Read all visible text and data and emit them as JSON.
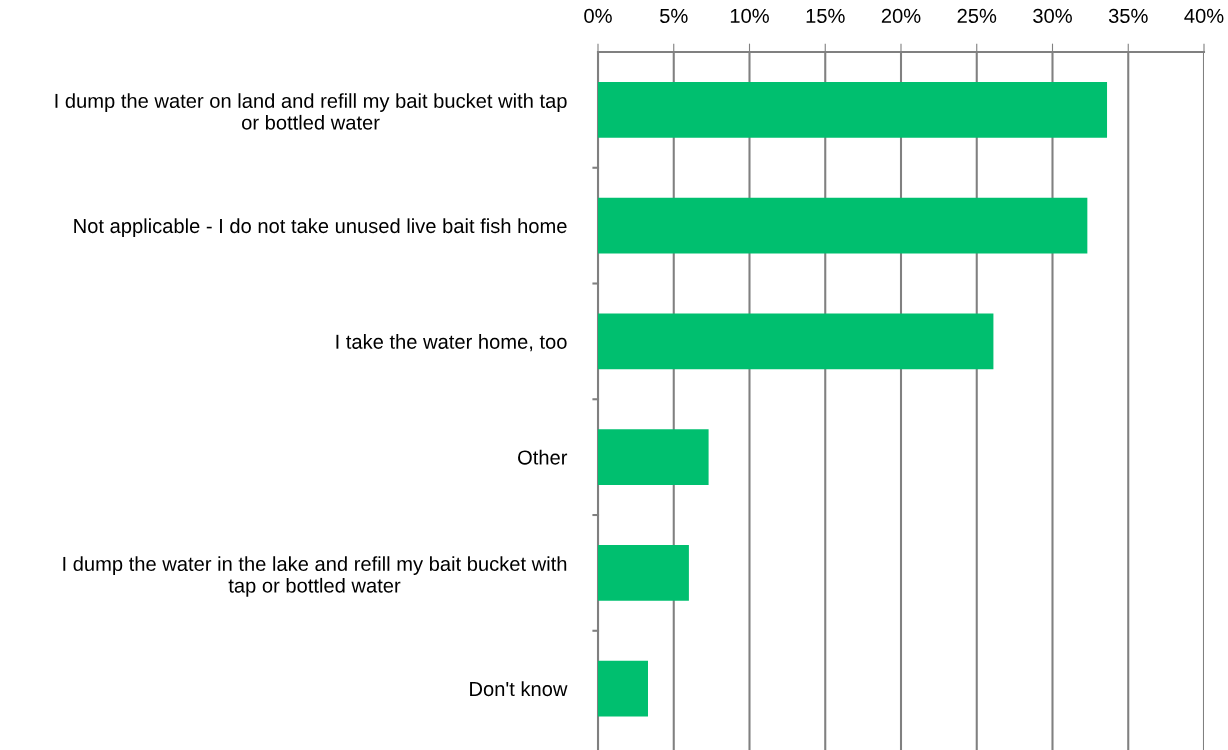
{
  "chart_data": {
    "type": "bar",
    "orientation": "horizontal",
    "categories": [
      "I dump the water on land and refill my bait bucket with tap\nor bottled water",
      "Not applicable - I do not take unused live bait fish home",
      "I take the water home, too",
      "Other",
      "I dump the water in the lake and refill my bait bucket with\ntap or bottled water",
      "Don't know"
    ],
    "values": [
      33.6,
      32.3,
      26.1,
      7.3,
      6.0,
      3.3
    ],
    "color": "#00bf6f",
    "xlim": [
      0,
      40
    ],
    "xticks": [
      {
        "value": 0,
        "label": "0%"
      },
      {
        "value": 5,
        "label": "5%"
      },
      {
        "value": 10,
        "label": "10%"
      },
      {
        "value": 15,
        "label": "15%"
      },
      {
        "value": 20,
        "label": "20%"
      },
      {
        "value": 25,
        "label": "25%"
      },
      {
        "value": 30,
        "label": "30%"
      },
      {
        "value": 35,
        "label": "35%"
      },
      {
        "value": 40,
        "label": "40%"
      }
    ],
    "grid": "x"
  }
}
